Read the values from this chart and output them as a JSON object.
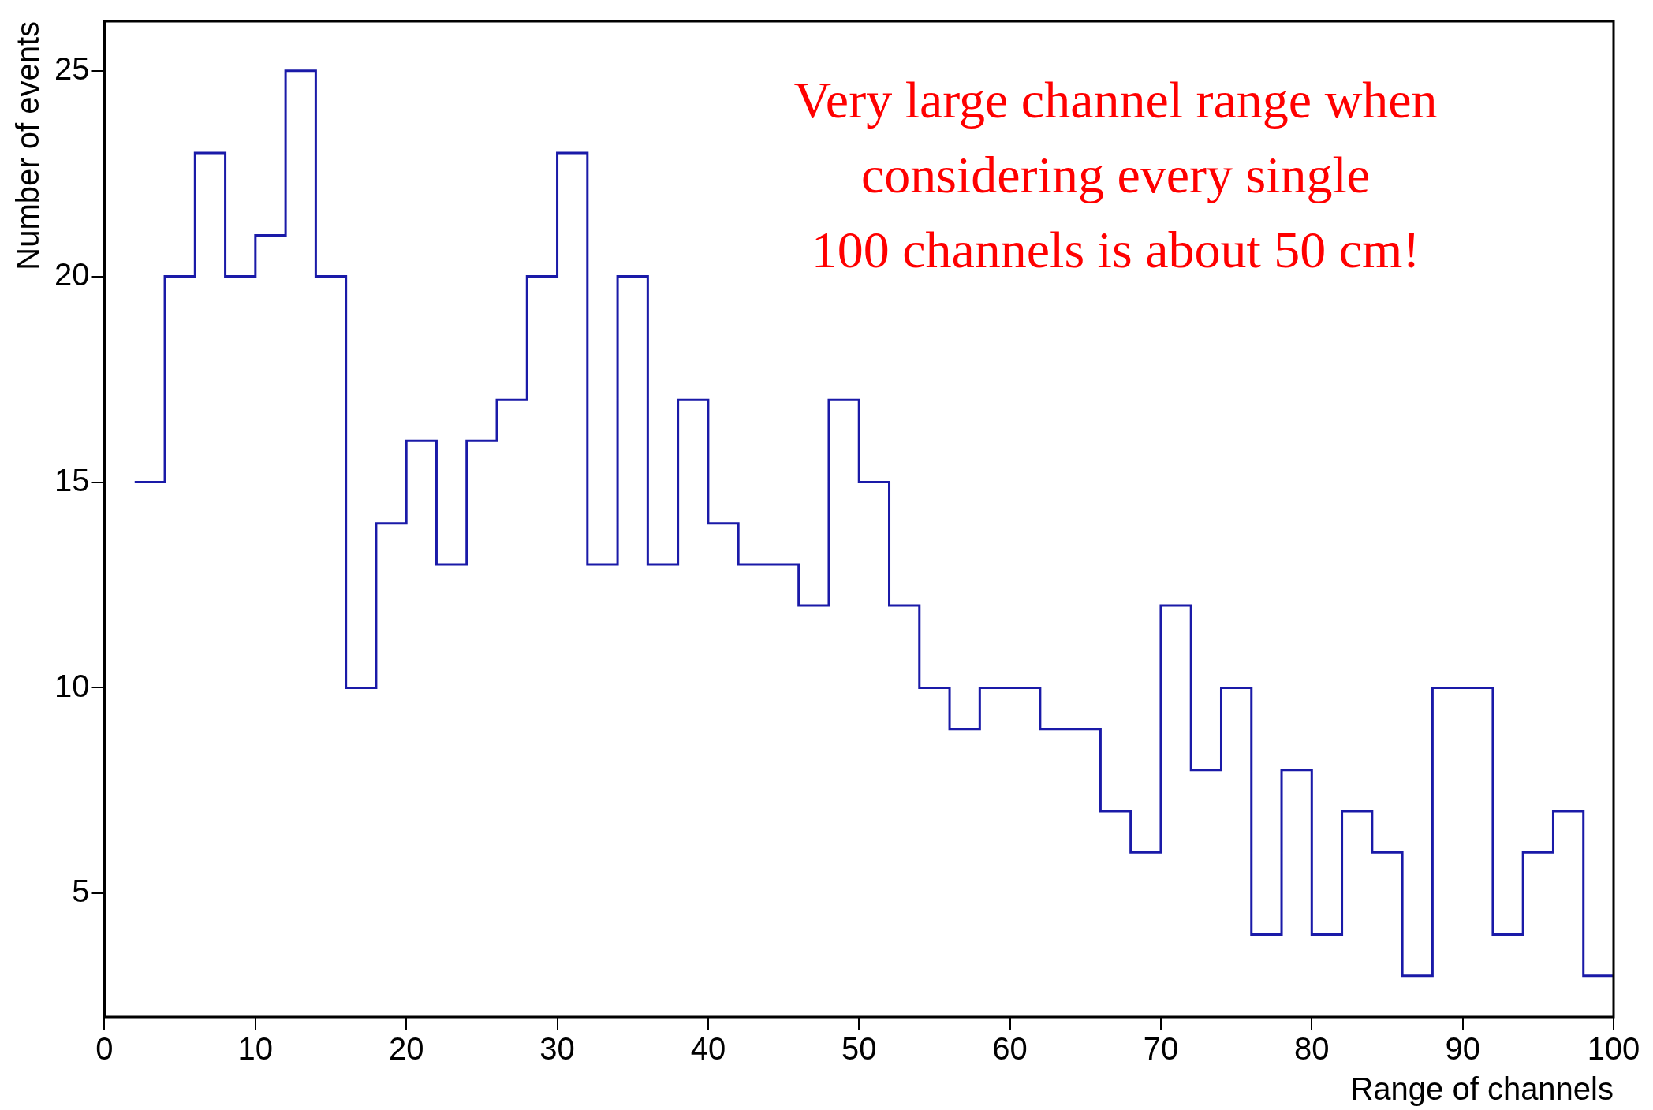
{
  "chart_data": {
    "type": "histogram",
    "xlabel": "Range of channels",
    "ylabel": "Number of events",
    "bins": [
      2,
      4,
      6,
      8,
      10,
      12,
      14,
      16,
      18,
      20,
      22,
      24,
      26,
      28,
      30,
      32,
      34,
      36,
      38,
      40,
      42,
      44,
      46,
      48,
      50,
      52,
      54,
      56,
      58,
      60,
      62,
      64,
      66,
      68,
      70,
      72,
      74,
      76,
      78,
      80,
      82,
      84,
      86,
      88,
      90,
      92,
      94,
      96,
      98,
      100
    ],
    "values": [
      15,
      20,
      23,
      20,
      21,
      25,
      20,
      10,
      14,
      16,
      13,
      16,
      17,
      20,
      23,
      13,
      20,
      13,
      17,
      14,
      13,
      13,
      12,
      17,
      15,
      12,
      10,
      9,
      10,
      10,
      9,
      9,
      7,
      6,
      12,
      8,
      10,
      4,
      8,
      4,
      7,
      6,
      3,
      10,
      10,
      4,
      6,
      7,
      3
    ],
    "color": "#1a1aa8",
    "xlim": [
      0,
      100
    ],
    "xticks": [
      0,
      10,
      20,
      30,
      40,
      50,
      60,
      70,
      80,
      90,
      100
    ],
    "ylim": [
      2,
      26.2
    ],
    "yticks": [
      5,
      10,
      15,
      20,
      25
    ],
    "grid": false,
    "legend": false,
    "annotations": [
      "Very large channel range when",
      "considering every single",
      "100 channels is about 50 cm!"
    ]
  }
}
